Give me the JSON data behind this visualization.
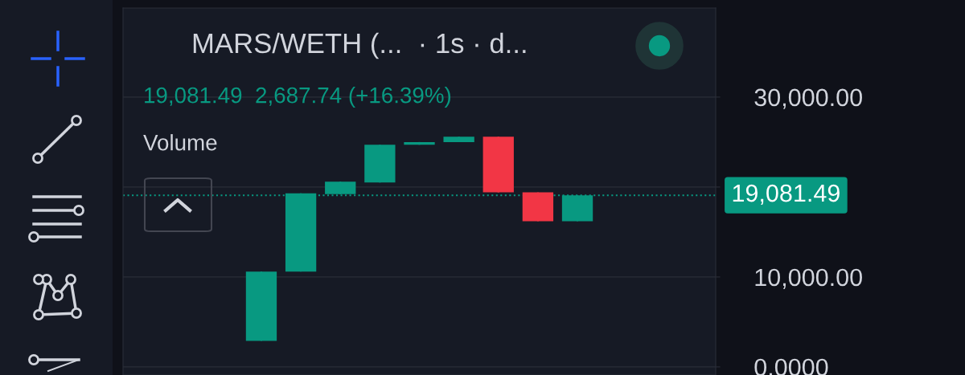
{
  "chart_data": {
    "type": "candlestick",
    "title": "MARS/WETH (...  · 1s · d...",
    "subtitle": "19,081.49  2,687.74 (+16.39%)",
    "annotations": [
      "Volume"
    ],
    "categories": [
      null,
      null,
      null,
      null,
      null,
      null,
      null,
      null,
      null,
      null,
      null,
      null,
      null,
      null,
      null
    ],
    "ohlc": [
      null,
      null,
      null,
      [
        2900,
        10600,
        2900,
        10600
      ],
      [
        10600,
        19300,
        10600,
        19300
      ],
      [
        19200,
        20600,
        19200,
        20600
      ],
      [
        20500,
        24700,
        20500,
        24700
      ],
      [
        24700,
        25000,
        24700,
        25000
      ],
      [
        25000,
        25600,
        25000,
        25600
      ],
      [
        25600,
        25600,
        19400,
        19400
      ],
      [
        19400,
        19400,
        16200,
        16200
      ],
      [
        16200,
        19081.49,
        16200,
        19081.49
      ],
      null,
      null,
      null
    ],
    "colors": [
      null,
      null,
      null,
      "#089981",
      "#089981",
      "#089981",
      "#089981",
      "#089981",
      "#089981",
      "#f23645",
      "#f23645",
      "#089981",
      null,
      null,
      null
    ],
    "ylim": [
      -900,
      39900
    ],
    "yticks": [
      {
        "value": 0,
        "label": "0.0000"
      },
      {
        "value": 10000,
        "label": "10,000.00"
      },
      {
        "value": 20000,
        "label": null
      },
      {
        "value": 30000,
        "label": "30,000.00"
      }
    ],
    "tick_labels": "y",
    "grid": "y",
    "ref_lines": [
      {
        "axis": "y",
        "value": 19081.49,
        "label": "19,081.49",
        "color": "#089981",
        "line_style": "dotted"
      }
    ]
  }
}
